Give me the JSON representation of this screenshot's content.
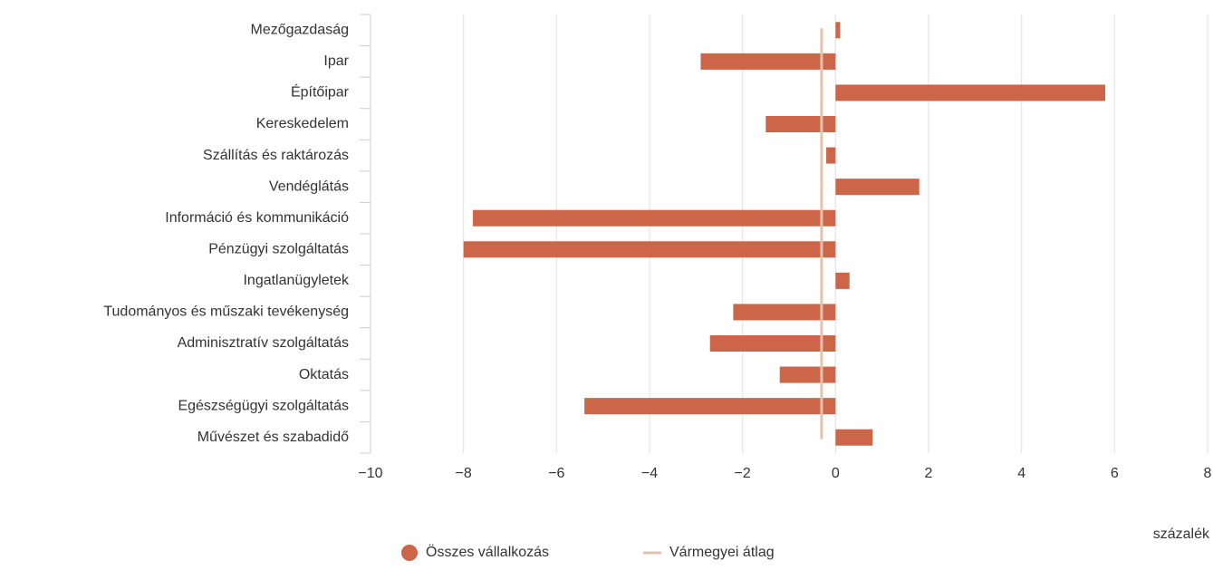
{
  "chart_data": {
    "type": "hbar",
    "categories": [
      "Mezőgazdaság",
      "Ipar",
      "Építőipar",
      "Kereskedelem",
      "Szállítás és raktározás",
      "Vendéglátás",
      "Információ és kommunikáció",
      "Pénzügyi szolgáltatás",
      "Ingatlanügyletek",
      "Tudományos és műszaki tevékenység",
      "Adminisztratív szolgáltatás",
      "Oktatás",
      "Egészségügyi szolgáltatás",
      "Művészet és szabadidő"
    ],
    "series": [
      {
        "name": "Összes vállalkozás",
        "color": "#cd6549",
        "values": [
          0.1,
          -2.9,
          5.8,
          -1.5,
          -0.2,
          1.8,
          -7.8,
          -8.0,
          0.3,
          -2.2,
          -2.7,
          -1.2,
          -5.4,
          0.8
        ]
      }
    ],
    "average": {
      "name": "Vármegyei átlag",
      "color": "#e3c3ac",
      "value": -0.3
    },
    "x_label": "százalék",
    "xlim": [
      -10,
      8
    ],
    "xticks": [
      {
        "value": -10,
        "label": "−10"
      },
      {
        "value": -8,
        "label": "−8"
      },
      {
        "value": -6,
        "label": "−6"
      },
      {
        "value": -4,
        "label": "−4"
      },
      {
        "value": -2,
        "label": "−2"
      },
      0,
      2,
      4,
      6,
      8
    ],
    "grid": true
  }
}
